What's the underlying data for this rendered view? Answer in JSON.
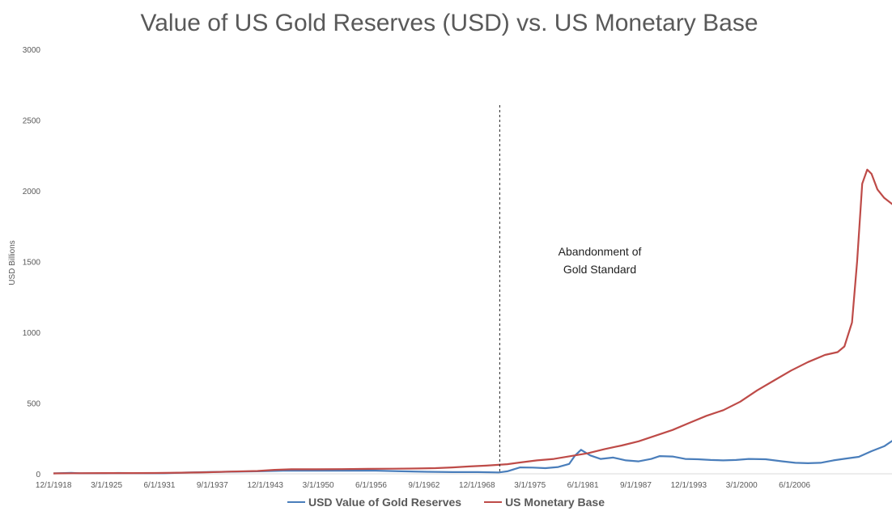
{
  "chart_data": {
    "type": "line",
    "title": "Value of US Gold Reserves (USD) vs. US Monetary Base",
    "ylabel": "USD Billions",
    "xlabel": "",
    "ylim": [
      0,
      3000
    ],
    "yticks": [
      0,
      500,
      1000,
      1500,
      2000,
      2500,
      3000
    ],
    "x_tick_labels": [
      "12/1/1918",
      "3/1/1925",
      "6/1/1931",
      "9/1/1937",
      "12/1/1943",
      "3/1/1950",
      "6/1/1956",
      "9/1/1962",
      "12/1/1968",
      "3/1/1975",
      "6/1/1981",
      "9/1/1987",
      "12/1/1993",
      "3/1/2000",
      "6/1/2006"
    ],
    "grid": false,
    "legend_position": "bottom",
    "annotation": {
      "x": 1971.6,
      "lines": [
        "Abandonment of",
        "Gold Standard"
      ],
      "style": "dashed vertical line"
    },
    "series": [
      {
        "name": "USD Value of Gold Reserves",
        "color": "#4a7ebb",
        "points": [
          [
            1918.9,
            3
          ],
          [
            1921,
            7
          ],
          [
            1922,
            4
          ],
          [
            1925,
            4
          ],
          [
            1926.5,
            6
          ],
          [
            1928,
            5
          ],
          [
            1930,
            4
          ],
          [
            1932,
            4
          ],
          [
            1934,
            8
          ],
          [
            1937,
            12
          ],
          [
            1940,
            15
          ],
          [
            1943,
            18
          ],
          [
            1946,
            22
          ],
          [
            1950,
            22
          ],
          [
            1953,
            22
          ],
          [
            1957,
            22
          ],
          [
            1960,
            18
          ],
          [
            1963,
            14
          ],
          [
            1966,
            12
          ],
          [
            1969,
            12
          ],
          [
            1971.5,
            10
          ],
          [
            1972.5,
            18
          ],
          [
            1974,
            45
          ],
          [
            1975.5,
            44
          ],
          [
            1977,
            40
          ],
          [
            1978.5,
            48
          ],
          [
            1979.8,
            70
          ],
          [
            1980.5,
            130
          ],
          [
            1981.2,
            170
          ],
          [
            1982.3,
            130
          ],
          [
            1983.5,
            105
          ],
          [
            1985,
            115
          ],
          [
            1986.5,
            95
          ],
          [
            1988,
            88
          ],
          [
            1989.5,
            105
          ],
          [
            1990.5,
            125
          ],
          [
            1992,
            122
          ],
          [
            1993.5,
            105
          ],
          [
            1995,
            103
          ],
          [
            1996.5,
            98
          ],
          [
            1998,
            95
          ],
          [
            1999.5,
            98
          ],
          [
            2001,
            105
          ],
          [
            2003,
            103
          ],
          [
            2005,
            88
          ],
          [
            2006.5,
            78
          ],
          [
            2008,
            75
          ],
          [
            2009.5,
            78
          ],
          [
            2011,
            95
          ],
          [
            2012.5,
            108
          ],
          [
            2014,
            120
          ],
          [
            2015.5,
            160
          ],
          [
            2017,
            195
          ],
          [
            2018.5,
            255
          ],
          [
            2019.6,
            330
          ],
          [
            2020,
            320
          ],
          [
            2020.6,
            355
          ],
          [
            2021.3,
            385
          ]
        ]
      },
      {
        "name": "US Monetary Base",
        "color": "#be4b48",
        "points": [
          [
            1918.9,
            3
          ],
          [
            1921,
            4
          ],
          [
            1925,
            5
          ],
          [
            1928,
            5
          ],
          [
            1931,
            6
          ],
          [
            1934,
            8
          ],
          [
            1937,
            11
          ],
          [
            1940,
            16
          ],
          [
            1943,
            20
          ],
          [
            1945,
            28
          ],
          [
            1947,
            32
          ],
          [
            1950,
            32
          ],
          [
            1953,
            33
          ],
          [
            1956,
            35
          ],
          [
            1959,
            36
          ],
          [
            1962,
            38
          ],
          [
            1964,
            40
          ],
          [
            1966,
            45
          ],
          [
            1968,
            52
          ],
          [
            1970,
            58
          ],
          [
            1972.5,
            68
          ],
          [
            1974,
            80
          ],
          [
            1976,
            95
          ],
          [
            1978,
            105
          ],
          [
            1980,
            125
          ],
          [
            1982,
            145
          ],
          [
            1984,
            175
          ],
          [
            1986,
            200
          ],
          [
            1988,
            230
          ],
          [
            1990,
            270
          ],
          [
            1992,
            310
          ],
          [
            1994,
            360
          ],
          [
            1996,
            410
          ],
          [
            1998,
            450
          ],
          [
            2000,
            510
          ],
          [
            2002,
            590
          ],
          [
            2004,
            660
          ],
          [
            2006,
            730
          ],
          [
            2008,
            790
          ],
          [
            2010,
            840
          ],
          [
            2011.5,
            860
          ],
          [
            2012.3,
            900
          ],
          [
            2013.2,
            1070
          ],
          [
            2013.8,
            1500
          ],
          [
            2014.4,
            2050
          ],
          [
            2015,
            2150
          ],
          [
            2015.5,
            2120
          ],
          [
            2016.2,
            2010
          ],
          [
            2017,
            1950
          ],
          [
            2018.5,
            1880
          ],
          [
            2019.5,
            1800
          ],
          [
            2020.5,
            1850
          ],
          [
            2021.3,
            1900
          ]
        ]
      }
    ]
  }
}
